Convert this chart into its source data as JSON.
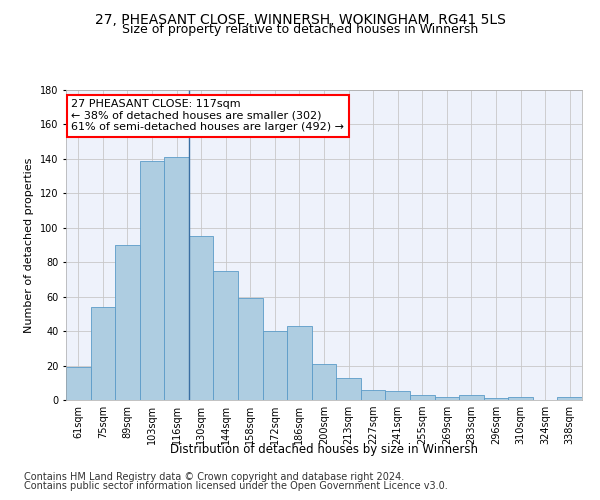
{
  "title": "27, PHEASANT CLOSE, WINNERSH, WOKINGHAM, RG41 5LS",
  "subtitle": "Size of property relative to detached houses in Winnersh",
  "xlabel": "Distribution of detached houses by size in Winnersh",
  "ylabel": "Number of detached properties",
  "categories": [
    "61sqm",
    "75sqm",
    "89sqm",
    "103sqm",
    "116sqm",
    "130sqm",
    "144sqm",
    "158sqm",
    "172sqm",
    "186sqm",
    "200sqm",
    "213sqm",
    "227sqm",
    "241sqm",
    "255sqm",
    "269sqm",
    "283sqm",
    "296sqm",
    "310sqm",
    "324sqm",
    "338sqm"
  ],
  "values": [
    19,
    54,
    90,
    139,
    141,
    95,
    75,
    59,
    40,
    43,
    21,
    13,
    6,
    5,
    3,
    2,
    3,
    1,
    2,
    0,
    2
  ],
  "bar_color": "#aecde1",
  "bar_edge_color": "#5b9bc8",
  "vline_x_index": 4,
  "vline_color": "#3a6fa3",
  "annotation_text": "27 PHEASANT CLOSE: 117sqm\n← 38% of detached houses are smaller (302)\n61% of semi-detached houses are larger (492) →",
  "annotation_box_color": "white",
  "annotation_box_edge_color": "red",
  "ylim": [
    0,
    180
  ],
  "yticks": [
    0,
    20,
    40,
    60,
    80,
    100,
    120,
    140,
    160,
    180
  ],
  "background_color": "#eef2fb",
  "grid_color": "#c8c8c8",
  "footer_line1": "Contains HM Land Registry data © Crown copyright and database right 2024.",
  "footer_line2": "Contains public sector information licensed under the Open Government Licence v3.0.",
  "title_fontsize": 10,
  "subtitle_fontsize": 9,
  "xlabel_fontsize": 8.5,
  "ylabel_fontsize": 8,
  "tick_fontsize": 7,
  "annotation_fontsize": 8,
  "footer_fontsize": 7
}
